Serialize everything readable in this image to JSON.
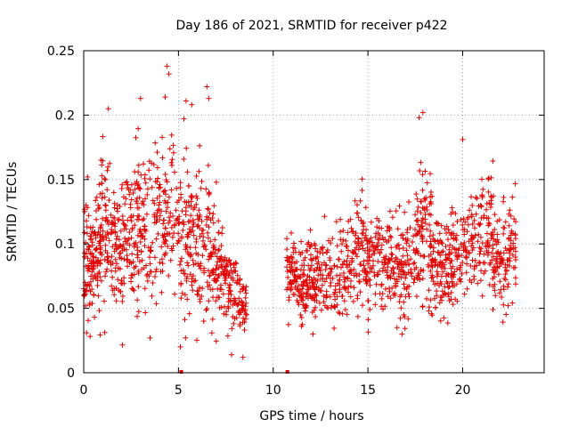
{
  "chart_data": {
    "type": "scatter",
    "title": "Day 186 of 2021, SRMTID for receiver p422",
    "xlabel": "GPS time / hours",
    "ylabel": "SRMTID / TECUs",
    "xlim": [
      0,
      24.3
    ],
    "ylim": [
      0,
      0.25
    ],
    "xticks": [
      0,
      5,
      10,
      15,
      20
    ],
    "yticks": [
      0,
      0.05,
      0.1,
      0.15,
      0.2,
      0.25
    ],
    "ytick_labels": [
      "0",
      "0.05",
      "0.1",
      "0.15",
      "0.2",
      "0.25"
    ],
    "grid": true,
    "marker": "plus",
    "color": "#e00000",
    "segments": [
      {
        "start": 0.0,
        "end": 8.6,
        "n": 900
      },
      {
        "start": 10.7,
        "end": 22.8,
        "n": 1150
      }
    ],
    "envelope": [
      [
        0.0,
        0.09,
        0.035
      ],
      [
        0.5,
        0.085,
        0.03
      ],
      [
        1.0,
        0.11,
        0.04
      ],
      [
        1.5,
        0.1,
        0.035
      ],
      [
        2.0,
        0.095,
        0.035
      ],
      [
        2.5,
        0.11,
        0.04
      ],
      [
        3.0,
        0.12,
        0.045
      ],
      [
        3.5,
        0.11,
        0.04
      ],
      [
        4.0,
        0.115,
        0.045
      ],
      [
        4.5,
        0.12,
        0.045
      ],
      [
        5.0,
        0.115,
        0.045
      ],
      [
        5.5,
        0.105,
        0.04
      ],
      [
        6.0,
        0.1,
        0.04
      ],
      [
        6.5,
        0.1,
        0.04
      ],
      [
        7.0,
        0.085,
        0.035
      ],
      [
        7.5,
        0.075,
        0.025
      ],
      [
        8.0,
        0.065,
        0.022
      ],
      [
        8.6,
        0.045,
        0.015
      ],
      [
        10.7,
        0.075,
        0.022
      ],
      [
        12.0,
        0.07,
        0.022
      ],
      [
        13.0,
        0.075,
        0.025
      ],
      [
        14.0,
        0.08,
        0.025
      ],
      [
        14.5,
        0.1,
        0.035
      ],
      [
        15.0,
        0.085,
        0.03
      ],
      [
        16.0,
        0.09,
        0.03
      ],
      [
        17.0,
        0.08,
        0.03
      ],
      [
        17.8,
        0.11,
        0.04
      ],
      [
        18.5,
        0.085,
        0.03
      ],
      [
        19.0,
        0.08,
        0.025
      ],
      [
        20.0,
        0.095,
        0.03
      ],
      [
        21.0,
        0.105,
        0.035
      ],
      [
        21.5,
        0.1,
        0.035
      ],
      [
        22.0,
        0.09,
        0.03
      ],
      [
        22.8,
        0.1,
        0.03
      ]
    ],
    "outliers": [
      [
        4.4,
        0.238
      ],
      [
        4.5,
        0.232
      ],
      [
        6.5,
        0.222
      ],
      [
        6.6,
        0.213
      ],
      [
        4.3,
        0.214
      ],
      [
        3.0,
        0.213
      ],
      [
        5.4,
        0.211
      ],
      [
        5.7,
        0.208
      ],
      [
        1.3,
        0.205
      ],
      [
        17.9,
        0.202
      ],
      [
        17.7,
        0.198
      ],
      [
        20.0,
        0.181
      ],
      [
        0.2,
        0.152
      ],
      [
        3.5,
        0.027
      ],
      [
        5.1,
        0.02
      ],
      [
        7.8,
        0.014
      ],
      [
        8.4,
        0.012
      ],
      [
        12.1,
        0.03
      ],
      [
        16.8,
        0.03
      ],
      [
        0.15,
        0.031
      ]
    ],
    "baseline_marks": [
      5.15,
      10.75
    ]
  }
}
